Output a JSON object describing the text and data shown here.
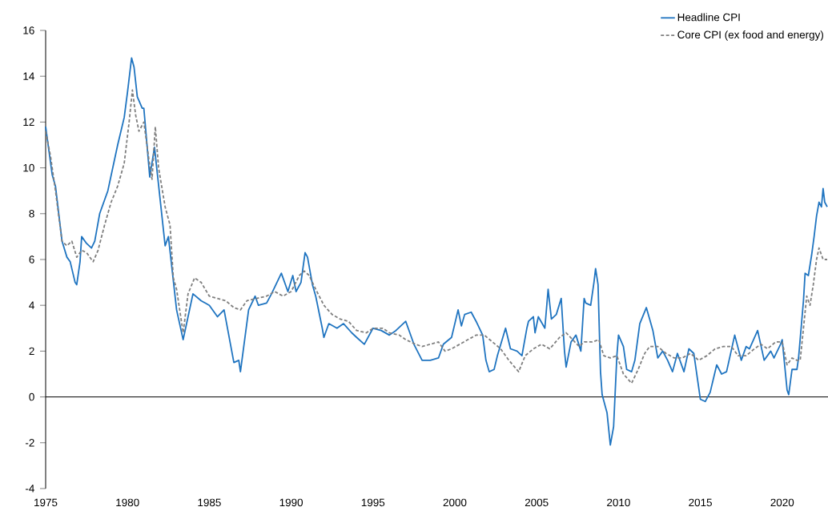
{
  "chart_data": {
    "type": "line",
    "xlim": [
      1975,
      2022.8
    ],
    "ylim": [
      -4,
      16
    ],
    "xticks": [
      1975,
      1980,
      1985,
      1990,
      1995,
      2000,
      2005,
      2010,
      2015,
      2020
    ],
    "yticks": [
      -4,
      -2,
      0,
      2,
      4,
      6,
      8,
      10,
      12,
      14,
      16
    ],
    "grid": false,
    "legend": "top right",
    "ref_lines": [
      {
        "axis": "y",
        "value": 0,
        "color": "#000000"
      }
    ],
    "series": [
      {
        "name": "Headline CPI",
        "color": "#1f74c0",
        "line_style": "solid",
        "x": [
          1975.0,
          1975.4,
          1975.6,
          1976.0,
          1976.3,
          1976.5,
          1976.8,
          1976.9,
          1977.1,
          1977.2,
          1977.5,
          1977.8,
          1978.0,
          1978.3,
          1978.8,
          1979.4,
          1979.8,
          1980.0,
          1980.25,
          1980.4,
          1980.6,
          1980.9,
          1981.0,
          1981.36,
          1981.65,
          1982.3,
          1982.5,
          1983.0,
          1983.4,
          1983.7,
          1984.0,
          1984.5,
          1985.0,
          1985.5,
          1985.9,
          1986.5,
          1986.8,
          1986.9,
          1987.4,
          1987.8,
          1988.0,
          1988.5,
          1988.8,
          1989.4,
          1989.8,
          1990.1,
          1990.3,
          1990.6,
          1990.85,
          1991.0,
          1991.3,
          1991.5,
          1991.9,
          1992.0,
          1992.3,
          1992.8,
          1993.2,
          1993.7,
          1994.0,
          1994.47,
          1995.0,
          1995.5,
          1996.0,
          1996.4,
          1997.0,
          1997.5,
          1998.0,
          1998.5,
          1999.0,
          1999.3,
          1999.8,
          2000.2,
          2000.4,
          2000.6,
          2001.0,
          2001.3,
          2001.7,
          2001.9,
          2002.1,
          2002.4,
          2002.6,
          2003.1,
          2003.4,
          2003.8,
          2004.1,
          2004.4,
          2004.5,
          2004.8,
          2004.9,
          2005.1,
          2005.5,
          2005.7,
          2005.9,
          2006.2,
          2006.5,
          2006.7,
          2006.8,
          2007.1,
          2007.4,
          2007.7,
          2007.9,
          2008.0,
          2008.3,
          2008.5,
          2008.6,
          2008.75,
          2008.9,
          2009.0,
          2009.3,
          2009.5,
          2009.7,
          2009.9,
          2010.0,
          2010.3,
          2010.5,
          2010.8,
          2011.0,
          2011.3,
          2011.7,
          2011.9,
          2012.1,
          2012.4,
          2012.7,
          2013.0,
          2013.3,
          2013.6,
          2014.0,
          2014.3,
          2014.6,
          2015.0,
          2015.3,
          2015.6,
          2016.0,
          2016.3,
          2016.6,
          2017.1,
          2017.5,
          2017.8,
          2018.0,
          2018.5,
          2018.9,
          2019.3,
          2019.5,
          2019.9,
          2020.0,
          2020.3,
          2020.4,
          2020.6,
          2020.9,
          2021.0,
          2021.3,
          2021.4,
          2021.6,
          2021.8,
          2021.95,
          2022.1,
          2022.25,
          2022.4,
          2022.5,
          2022.6,
          2022.75
        ],
        "values": [
          11.8,
          9.7,
          9.2,
          6.8,
          6.1,
          5.9,
          5.0,
          4.9,
          5.9,
          7.0,
          6.7,
          6.5,
          6.8,
          8.0,
          9.0,
          11.0,
          12.2,
          13.3,
          14.8,
          14.4,
          13.1,
          12.6,
          12.6,
          9.6,
          10.9,
          6.6,
          7.0,
          3.8,
          2.5,
          3.5,
          4.5,
          4.2,
          4.0,
          3.5,
          3.8,
          1.5,
          1.6,
          1.1,
          3.8,
          4.4,
          4.0,
          4.1,
          4.5,
          5.4,
          4.6,
          5.3,
          4.6,
          5.0,
          6.3,
          6.1,
          4.9,
          4.4,
          3.0,
          2.6,
          3.2,
          3.0,
          3.2,
          2.8,
          2.6,
          2.3,
          3.0,
          2.9,
          2.7,
          2.9,
          3.3,
          2.3,
          1.6,
          1.6,
          1.7,
          2.3,
          2.6,
          3.8,
          3.1,
          3.6,
          3.7,
          3.3,
          2.7,
          1.6,
          1.1,
          1.2,
          1.8,
          3.0,
          2.1,
          2.0,
          1.8,
          3.0,
          3.3,
          3.5,
          2.8,
          3.5,
          3.0,
          4.7,
          3.4,
          3.6,
          4.3,
          2.0,
          1.3,
          2.4,
          2.7,
          2.0,
          4.3,
          4.1,
          4.0,
          5.0,
          5.6,
          4.9,
          1.1,
          0.1,
          -0.7,
          -2.1,
          -1.3,
          1.8,
          2.7,
          2.2,
          1.2,
          1.1,
          1.6,
          3.2,
          3.9,
          3.4,
          2.9,
          1.7,
          2.0,
          1.6,
          1.1,
          1.9,
          1.1,
          2.1,
          1.9,
          -0.1,
          -0.2,
          0.2,
          1.4,
          1.0,
          1.1,
          2.7,
          1.6,
          2.2,
          2.1,
          2.9,
          1.6,
          2.0,
          1.7,
          2.3,
          2.5,
          0.3,
          0.1,
          1.2,
          1.2,
          1.7,
          4.2,
          5.4,
          5.3,
          6.2,
          7.0,
          7.9,
          8.5,
          8.3,
          9.1,
          8.5,
          8.3
        ]
      },
      {
        "name": "Core CPI (ex food and energy)",
        "color": "#7f7f7f",
        "line_style": "dashed",
        "x": [
          1975.0,
          1975.3,
          1975.6,
          1976.0,
          1976.3,
          1976.6,
          1976.9,
          1977.2,
          1977.5,
          1977.9,
          1978.2,
          1978.6,
          1979.0,
          1979.4,
          1979.8,
          1980.1,
          1980.3,
          1980.5,
          1980.7,
          1981.0,
          1981.3,
          1981.5,
          1981.7,
          1981.9,
          1982.3,
          1982.6,
          1982.8,
          1983.0,
          1983.4,
          1983.7,
          1984.1,
          1984.5,
          1985.0,
          1985.5,
          1986.0,
          1986.5,
          1986.9,
          1987.3,
          1987.9,
          1988.5,
          1989.0,
          1989.5,
          1990.0,
          1990.5,
          1990.8,
          1991.1,
          1991.5,
          1992.0,
          1992.5,
          1993.0,
          1993.5,
          1994.0,
          1994.6,
          1995.0,
          1995.6,
          1996.0,
          1996.6,
          1997.0,
          1997.6,
          1998.0,
          1998.5,
          1999.0,
          1999.4,
          1999.8,
          2000.3,
          2000.8,
          2001.3,
          2001.8,
          2002.3,
          2002.8,
          2003.3,
          2003.9,
          2004.3,
          2004.8,
          2005.3,
          2005.8,
          2006.4,
          2006.8,
          2007.2,
          2007.6,
          2007.9,
          2008.4,
          2008.8,
          2009.1,
          2009.5,
          2009.9,
          2010.3,
          2010.8,
          2011.2,
          2011.6,
          2011.9,
          2012.4,
          2012.9,
          2013.4,
          2013.9,
          2014.4,
          2014.9,
          2015.4,
          2015.9,
          2016.4,
          2016.9,
          2017.3,
          2017.8,
          2018.3,
          2018.7,
          2019.1,
          2019.6,
          2020.0,
          2020.3,
          2020.6,
          2020.9,
          2021.1,
          2021.3,
          2021.5,
          2021.7,
          2021.9,
          2022.1,
          2022.25,
          2022.5,
          2022.75
        ],
        "values": [
          11.6,
          10.5,
          9.0,
          6.8,
          6.6,
          6.8,
          6.1,
          6.4,
          6.3,
          5.9,
          6.4,
          7.5,
          8.5,
          9.2,
          10.2,
          12.0,
          13.4,
          12.3,
          11.6,
          12.0,
          10.4,
          9.5,
          11.8,
          10.0,
          8.3,
          7.5,
          5.2,
          4.7,
          2.8,
          4.5,
          5.2,
          5.0,
          4.4,
          4.3,
          4.2,
          3.9,
          3.8,
          4.2,
          4.3,
          4.4,
          4.6,
          4.4,
          4.6,
          5.3,
          5.5,
          5.3,
          4.7,
          4.0,
          3.6,
          3.4,
          3.3,
          2.9,
          2.8,
          3.0,
          3.0,
          2.8,
          2.7,
          2.5,
          2.3,
          2.2,
          2.3,
          2.4,
          2.0,
          2.1,
          2.3,
          2.5,
          2.7,
          2.7,
          2.4,
          2.1,
          1.6,
          1.1,
          1.8,
          2.1,
          2.3,
          2.1,
          2.6,
          2.8,
          2.5,
          2.2,
          2.4,
          2.4,
          2.5,
          1.8,
          1.7,
          1.8,
          1.0,
          0.6,
          1.2,
          1.9,
          2.2,
          2.2,
          1.9,
          1.7,
          1.7,
          1.9,
          1.6,
          1.8,
          2.1,
          2.2,
          2.2,
          1.8,
          1.8,
          2.1,
          2.3,
          2.1,
          2.4,
          2.4,
          1.4,
          1.7,
          1.6,
          1.6,
          3.0,
          4.4,
          4.0,
          4.9,
          6.0,
          6.5,
          6.0,
          6.0
        ]
      }
    ]
  }
}
